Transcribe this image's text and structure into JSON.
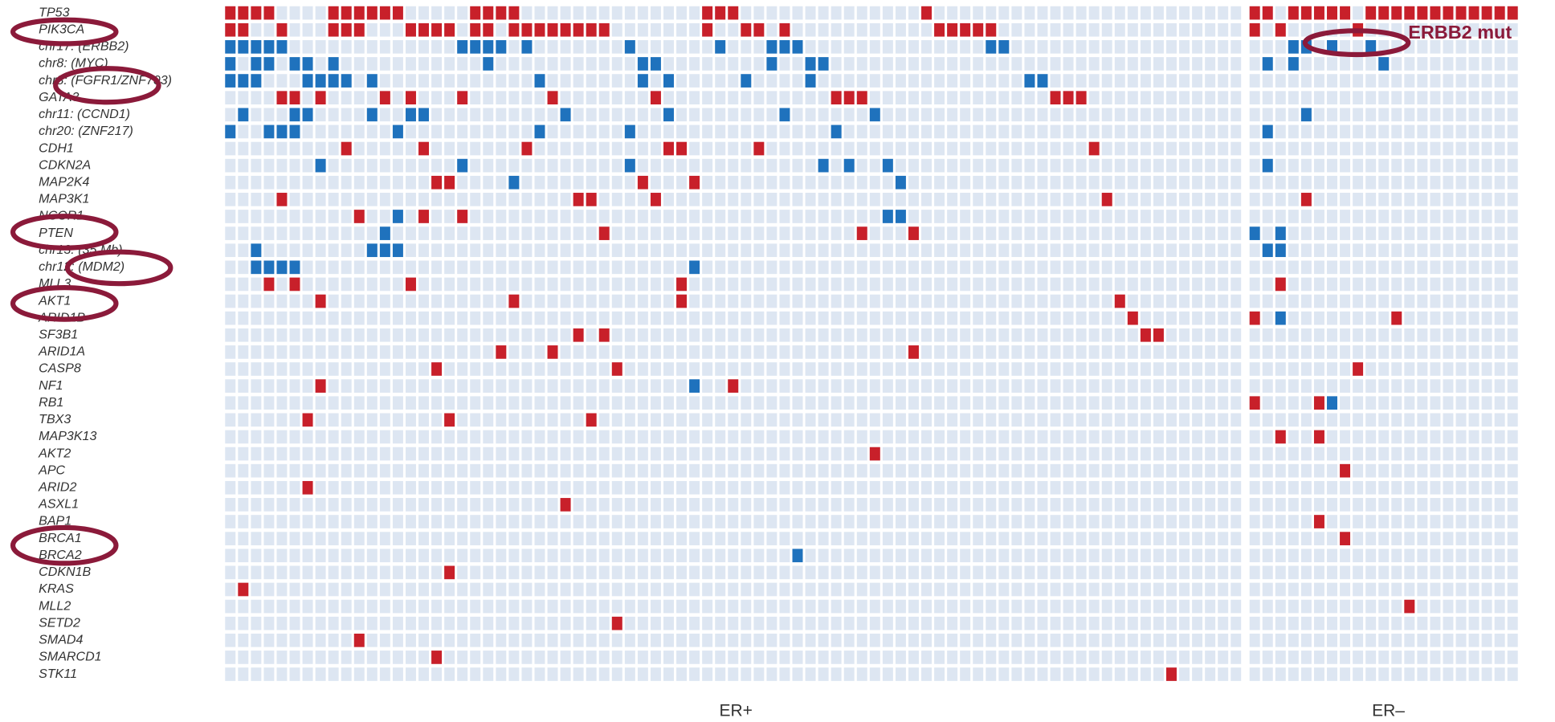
{
  "groups": {
    "er_pos": "ER+",
    "er_neg": "ER–"
  },
  "er_pos_samples": 79,
  "er_neg_samples": 21,
  "annotation": "ERBB2 mut",
  "rows": [
    {
      "label": "TP53",
      "pos_red": [
        0,
        1,
        2,
        3,
        8,
        9,
        10,
        11,
        12,
        13,
        19,
        20,
        21,
        22,
        37,
        38,
        39,
        54
      ],
      "neg_red": [
        0,
        1,
        3,
        4,
        5,
        6,
        7,
        9,
        10,
        11,
        12,
        13,
        14,
        15,
        16,
        17,
        18,
        19,
        20
      ]
    },
    {
      "label": "PIK3CA",
      "pos_red": [
        0,
        1,
        4,
        8,
        9,
        10,
        14,
        15,
        16,
        17,
        19,
        20,
        22,
        23,
        24,
        25,
        26,
        27,
        28,
        29,
        37,
        40,
        41,
        43,
        55,
        56,
        57,
        58,
        59
      ],
      "neg_red": [
        0,
        2,
        8
      ]
    },
    {
      "label": "chr17: (ERBB2)",
      "pos_blue": [
        0,
        1,
        2,
        3,
        4,
        18,
        19,
        20,
        21,
        23,
        31,
        38,
        42,
        43,
        44,
        59,
        60
      ],
      "neg_blue": [
        3,
        4,
        6,
        9
      ]
    },
    {
      "label": "chr8: (MYC)",
      "pos_blue": [
        0,
        2,
        3,
        5,
        6,
        8,
        20,
        32,
        33,
        42,
        45,
        46
      ],
      "neg_blue": [
        1,
        3,
        10
      ]
    },
    {
      "label": "chr8: (FGFR1/ZNF703)",
      "pos_blue": [
        0,
        1,
        2,
        6,
        7,
        8,
        9,
        11,
        24,
        32,
        34,
        40,
        45,
        62,
        63
      ]
    },
    {
      "label": "GATA3",
      "pos_red": [
        4,
        5,
        7,
        12,
        14,
        18,
        25,
        33,
        47,
        48,
        49,
        64,
        65,
        66
      ]
    },
    {
      "label": "chr11: (CCND1)",
      "pos_blue": [
        1,
        5,
        6,
        11,
        14,
        15,
        26,
        34,
        43,
        50
      ],
      "neg_blue": [
        4
      ]
    },
    {
      "label": "chr20: (ZNF217)",
      "pos_blue": [
        0,
        3,
        4,
        5,
        13,
        24,
        31,
        47
      ],
      "neg_blue": [
        1
      ]
    },
    {
      "label": "CDH1",
      "pos_red": [
        9,
        15,
        23,
        34,
        35,
        41,
        67
      ]
    },
    {
      "label": "CDKN2A",
      "pos_blue": [
        7,
        18,
        31,
        46,
        48,
        51
      ],
      "neg_blue": [
        1
      ]
    },
    {
      "label": "MAP2K4",
      "pos_red": [
        16,
        17,
        32,
        36
      ],
      "pos_blue": [
        22,
        52
      ]
    },
    {
      "label": "MAP3K1",
      "pos_red": [
        4,
        27,
        28,
        33,
        68
      ],
      "neg_red": [
        4
      ]
    },
    {
      "label": "NCOR1",
      "pos_red": [
        10,
        15,
        18
      ],
      "pos_blue": [
        13,
        51,
        52
      ]
    },
    {
      "label": "PTEN",
      "pos_red": [
        29,
        49,
        53
      ],
      "pos_blue": [
        12
      ],
      "neg_blue": [
        0,
        2
      ]
    },
    {
      "label": "chr13: (35 Mb)",
      "pos_blue": [
        2,
        11,
        12,
        13
      ],
      "neg_blue": [
        1,
        2
      ]
    },
    {
      "label": "chr12: (MDM2)",
      "pos_blue": [
        2,
        3,
        4,
        5,
        36
      ]
    },
    {
      "label": "MLL3",
      "pos_red": [
        3,
        5,
        14,
        35
      ],
      "neg_red": [
        2
      ]
    },
    {
      "label": "AKT1",
      "pos_red": [
        7,
        22,
        35,
        69
      ]
    },
    {
      "label": "ARID1B",
      "pos_red": [
        70
      ],
      "neg_red": [
        0,
        11
      ],
      "neg_blue": [
        2
      ]
    },
    {
      "label": "SF3B1",
      "pos_red": [
        27,
        29,
        71,
        72
      ]
    },
    {
      "label": "ARID1A",
      "pos_red": [
        21,
        25,
        53
      ]
    },
    {
      "label": "CASP8",
      "pos_red": [
        16,
        30
      ],
      "neg_red": [
        8
      ]
    },
    {
      "label": "NF1",
      "pos_red": [
        7,
        39
      ],
      "pos_blue": [
        36
      ]
    },
    {
      "label": "RB1",
      "neg_red": [
        0,
        5
      ],
      "neg_blue": [
        6
      ]
    },
    {
      "label": "TBX3",
      "pos_red": [
        6,
        17,
        28
      ]
    },
    {
      "label": "MAP3K13",
      "neg_red": [
        2,
        5
      ]
    },
    {
      "label": "AKT2",
      "pos_red": [
        50
      ]
    },
    {
      "label": "APC",
      "neg_red": [
        7
      ]
    },
    {
      "label": "ARID2",
      "pos_red": [
        6
      ]
    },
    {
      "label": "ASXL1",
      "pos_red": [
        26
      ]
    },
    {
      "label": "BAP1",
      "neg_red": [
        5
      ]
    },
    {
      "label": "BRCA1",
      "neg_red": [
        7
      ]
    },
    {
      "label": "BRCA2",
      "pos_blue": [
        44
      ]
    },
    {
      "label": "CDKN1B",
      "pos_red": [
        17
      ]
    },
    {
      "label": "KRAS",
      "pos_red": [
        1
      ]
    },
    {
      "label": "MLL2",
      "neg_red": [
        12
      ]
    },
    {
      "label": "SETD2",
      "pos_red": [
        30
      ]
    },
    {
      "label": "SMAD4",
      "pos_red": [
        10
      ]
    },
    {
      "label": "SMARCD1",
      "pos_red": [
        16
      ]
    },
    {
      "label": "STK11",
      "pos_red": [
        73
      ]
    }
  ]
}
